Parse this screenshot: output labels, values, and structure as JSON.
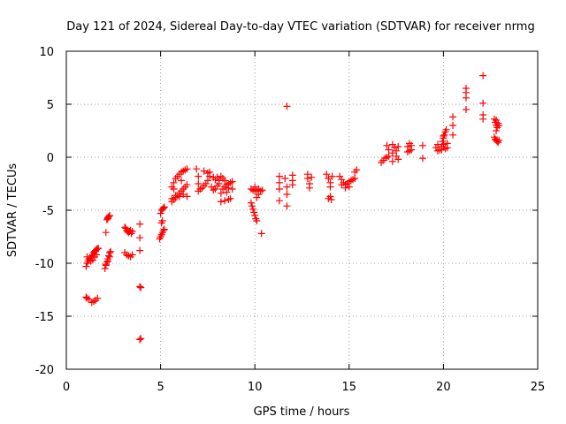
{
  "chart_data": {
    "type": "scatter",
    "title": "Day 121 of 2024, Sidereal Day-to-day VTEC variation (SDTVAR) for receiver nrmg",
    "xlabel": "GPS time / hours",
    "ylabel": "SDTVAR / TECUs",
    "xlim": [
      0,
      25
    ],
    "ylim": [
      -20,
      10
    ],
    "xticks": [
      0,
      5,
      10,
      15,
      20,
      25
    ],
    "yticks": [
      -20,
      -15,
      -10,
      -5,
      0,
      5,
      10
    ],
    "xtick_labels": [
      "0",
      "5",
      "10",
      "15",
      "20",
      "25"
    ],
    "ytick_labels": [
      "-20",
      "-15",
      "-10",
      "-5",
      "0",
      "5",
      "10"
    ],
    "grid": true,
    "marker": "+",
    "series": [
      {
        "name": "SDTVAR",
        "color": "#ff0000",
        "points": [
          [
            1.05,
            -13.2
          ],
          [
            1.1,
            -13.3
          ],
          [
            1.2,
            -13.4
          ],
          [
            1.35,
            -13.7
          ],
          [
            1.45,
            -13.6
          ],
          [
            1.55,
            -13.5
          ],
          [
            1.65,
            -13.3
          ],
          [
            1.05,
            -10.3
          ],
          [
            1.1,
            -10.0
          ],
          [
            1.15,
            -9.8
          ],
          [
            1.2,
            -9.6
          ],
          [
            1.3,
            -9.5
          ],
          [
            1.35,
            -9.3
          ],
          [
            1.4,
            -9.2
          ],
          [
            1.45,
            -9.0
          ],
          [
            1.5,
            -8.9
          ],
          [
            1.55,
            -8.8
          ],
          [
            1.6,
            -8.7
          ],
          [
            1.65,
            -8.6
          ],
          [
            1.7,
            -8.6
          ],
          [
            1.1,
            -9.4
          ],
          [
            1.2,
            -9.6
          ],
          [
            1.3,
            -9.8
          ],
          [
            1.4,
            -9.7
          ],
          [
            1.5,
            -9.4
          ],
          [
            1.6,
            -9.2
          ],
          [
            2.05,
            -10.5
          ],
          [
            2.1,
            -10.2
          ],
          [
            2.15,
            -9.9
          ],
          [
            2.2,
            -9.6
          ],
          [
            2.25,
            -9.3
          ],
          [
            2.3,
            -9.0
          ],
          [
            2.35,
            -8.9
          ],
          [
            2.1,
            -10.1
          ],
          [
            2.2,
            -9.8
          ],
          [
            2.3,
            -9.4
          ],
          [
            2.1,
            -7.1
          ],
          [
            2.15,
            -5.9
          ],
          [
            2.2,
            -5.7
          ],
          [
            2.25,
            -5.6
          ],
          [
            2.3,
            -5.5
          ],
          [
            2.2,
            -5.8
          ],
          [
            3.1,
            -9.0
          ],
          [
            3.2,
            -9.2
          ],
          [
            3.3,
            -9.3
          ],
          [
            3.4,
            -9.4
          ],
          [
            3.5,
            -9.2
          ],
          [
            3.1,
            -6.6
          ],
          [
            3.15,
            -6.7
          ],
          [
            3.2,
            -6.9
          ],
          [
            3.25,
            -7.0
          ],
          [
            3.3,
            -7.1
          ],
          [
            3.35,
            -7.0
          ],
          [
            3.4,
            -6.9
          ],
          [
            3.45,
            -7.2
          ],
          [
            3.5,
            -7.0
          ],
          [
            3.9,
            -6.3
          ],
          [
            3.9,
            -7.6
          ],
          [
            3.9,
            -8.8
          ],
          [
            3.9,
            -12.2
          ],
          [
            3.95,
            -12.3
          ],
          [
            3.9,
            -17.2
          ],
          [
            3.95,
            -17.1
          ],
          [
            4.95,
            -7.7
          ],
          [
            5.0,
            -7.5
          ],
          [
            5.05,
            -7.3
          ],
          [
            5.1,
            -7.1
          ],
          [
            5.15,
            -6.9
          ],
          [
            5.2,
            -6.8
          ],
          [
            5.05,
            -6.2
          ],
          [
            5.1,
            -6.0
          ],
          [
            5.0,
            -5.3
          ],
          [
            5.05,
            -5.0
          ],
          [
            5.1,
            -4.9
          ],
          [
            5.15,
            -4.8
          ],
          [
            5.2,
            -4.7
          ],
          [
            5.6,
            -4.2
          ],
          [
            5.7,
            -4.0
          ],
          [
            5.8,
            -3.8
          ],
          [
            5.9,
            -3.6
          ],
          [
            6.0,
            -3.4
          ],
          [
            6.1,
            -3.2
          ],
          [
            6.2,
            -3.0
          ],
          [
            6.3,
            -2.8
          ],
          [
            6.4,
            -2.6
          ],
          [
            5.6,
            -2.8
          ],
          [
            5.7,
            -2.4
          ],
          [
            5.8,
            -2.0
          ],
          [
            5.9,
            -1.8
          ],
          [
            6.0,
            -1.6
          ],
          [
            6.1,
            -1.4
          ],
          [
            6.2,
            -1.3
          ],
          [
            6.3,
            -1.2
          ],
          [
            6.4,
            -1.1
          ],
          [
            5.6,
            -3.9
          ],
          [
            5.8,
            -3.6
          ],
          [
            6.0,
            -3.7
          ],
          [
            6.2,
            -3.5
          ],
          [
            6.4,
            -3.7
          ],
          [
            5.7,
            -3.0
          ],
          [
            6.1,
            -2.2
          ],
          [
            6.9,
            -1.1
          ],
          [
            7.0,
            -1.8
          ],
          [
            7.0,
            -2.5
          ],
          [
            7.0,
            -3.2
          ],
          [
            7.1,
            -3.0
          ],
          [
            7.2,
            -2.9
          ],
          [
            7.3,
            -2.7
          ],
          [
            7.4,
            -2.5
          ],
          [
            7.3,
            -1.3
          ],
          [
            7.5,
            -1.5
          ],
          [
            7.5,
            -2.2
          ],
          [
            7.6,
            -1.8
          ],
          [
            7.7,
            -2.8
          ],
          [
            7.8,
            -3.1
          ],
          [
            7.9,
            -3.0
          ],
          [
            8.0,
            -2.7
          ],
          [
            8.1,
            -2.5
          ],
          [
            7.6,
            -1.4
          ],
          [
            7.8,
            -1.9
          ],
          [
            7.9,
            -2.1
          ],
          [
            8.0,
            -1.9
          ],
          [
            8.1,
            -2.2
          ],
          [
            8.2,
            -1.8
          ],
          [
            8.3,
            -2.0
          ],
          [
            8.2,
            -3.4
          ],
          [
            8.3,
            -3.0
          ],
          [
            8.4,
            -2.8
          ],
          [
            8.5,
            -2.6
          ],
          [
            8.6,
            -2.5
          ],
          [
            8.7,
            -2.4
          ],
          [
            8.8,
            -2.3
          ],
          [
            8.2,
            -4.2
          ],
          [
            8.4,
            -4.1
          ],
          [
            8.6,
            -4.0
          ],
          [
            8.7,
            -3.9
          ],
          [
            8.5,
            -3.3
          ],
          [
            8.8,
            -3.0
          ],
          [
            8.4,
            -2.2
          ],
          [
            8.6,
            -2.9
          ],
          [
            9.8,
            -3.0
          ],
          [
            9.9,
            -3.1
          ],
          [
            10.0,
            -3.2
          ],
          [
            10.1,
            -3.1
          ],
          [
            10.2,
            -3.0
          ],
          [
            10.3,
            -3.2
          ],
          [
            10.4,
            -3.1
          ],
          [
            9.8,
            -4.3
          ],
          [
            9.85,
            -4.6
          ],
          [
            9.9,
            -4.9
          ],
          [
            9.95,
            -5.2
          ],
          [
            10.0,
            -5.5
          ],
          [
            10.05,
            -5.8
          ],
          [
            10.1,
            -6.0
          ],
          [
            10.1,
            -3.8
          ],
          [
            10.2,
            -3.5
          ],
          [
            10.0,
            -2.8
          ],
          [
            10.35,
            -7.2
          ],
          [
            11.3,
            -1.8
          ],
          [
            11.3,
            -2.4
          ],
          [
            11.3,
            -3.0
          ],
          [
            11.3,
            -4.1
          ],
          [
            11.6,
            -2.0
          ],
          [
            11.7,
            -2.8
          ],
          [
            11.7,
            -3.5
          ],
          [
            11.7,
            -4.6
          ],
          [
            11.7,
            4.8
          ],
          [
            12.0,
            -1.7
          ],
          [
            12.0,
            -2.2
          ],
          [
            12.0,
            -2.6
          ],
          [
            12.8,
            -1.6
          ],
          [
            12.8,
            -2.0
          ],
          [
            12.9,
            -2.5
          ],
          [
            12.9,
            -2.9
          ],
          [
            13.0,
            -1.9
          ],
          [
            13.8,
            -1.6
          ],
          [
            13.9,
            -2.0
          ],
          [
            14.0,
            -2.4
          ],
          [
            14.0,
            -2.8
          ],
          [
            14.1,
            -1.8
          ],
          [
            13.9,
            -3.9
          ],
          [
            14.0,
            -3.7
          ],
          [
            14.05,
            -4.0
          ],
          [
            14.5,
            -1.8
          ],
          [
            14.6,
            -2.1
          ],
          [
            14.7,
            -2.4
          ],
          [
            14.8,
            -2.6
          ],
          [
            14.9,
            -2.5
          ],
          [
            15.0,
            -2.3
          ],
          [
            15.1,
            -2.2
          ],
          [
            15.2,
            -2.1
          ],
          [
            15.3,
            -2.0
          ],
          [
            14.6,
            -2.6
          ],
          [
            14.8,
            -2.9
          ],
          [
            15.0,
            -2.8
          ],
          [
            15.3,
            -1.4
          ],
          [
            15.4,
            -1.2
          ],
          [
            16.7,
            -0.5
          ],
          [
            16.8,
            -0.3
          ],
          [
            16.9,
            -0.1
          ],
          [
            17.0,
            0.0
          ],
          [
            17.1,
            0.1
          ],
          [
            17.0,
            1.1
          ],
          [
            17.1,
            0.7
          ],
          [
            17.3,
            1.2
          ],
          [
            17.3,
            0.4
          ],
          [
            17.3,
            -0.4
          ],
          [
            17.4,
            0.9
          ],
          [
            17.5,
            0.6
          ],
          [
            17.5,
            0.1
          ],
          [
            17.6,
            -0.2
          ],
          [
            17.6,
            1.0
          ],
          [
            18.1,
            0.5
          ],
          [
            18.1,
            1.0
          ],
          [
            18.2,
            1.3
          ],
          [
            18.2,
            0.6
          ],
          [
            18.3,
            0.7
          ],
          [
            18.3,
            1.1
          ],
          [
            18.9,
            1.1
          ],
          [
            18.9,
            -0.1
          ],
          [
            19.6,
            0.9
          ],
          [
            19.7,
            1.2
          ],
          [
            19.8,
            0.7
          ],
          [
            19.9,
            1.0
          ],
          [
            19.95,
            1.5
          ],
          [
            20.0,
            1.8
          ],
          [
            20.05,
            2.1
          ],
          [
            20.1,
            2.4
          ],
          [
            20.15,
            2.6
          ],
          [
            19.7,
            0.6
          ],
          [
            19.9,
            0.7
          ],
          [
            20.1,
            0.8
          ],
          [
            20.2,
            0.9
          ],
          [
            20.0,
            1.2
          ],
          [
            20.2,
            1.3
          ],
          [
            20.5,
            3.8
          ],
          [
            20.5,
            3.0
          ],
          [
            20.5,
            2.1
          ],
          [
            21.2,
            6.5
          ],
          [
            21.2,
            6.1
          ],
          [
            21.2,
            5.6
          ],
          [
            21.2,
            4.5
          ],
          [
            22.1,
            7.7
          ],
          [
            22.1,
            5.1
          ],
          [
            22.1,
            4.0
          ],
          [
            22.1,
            3.6
          ],
          [
            22.7,
            3.6
          ],
          [
            22.75,
            3.3
          ],
          [
            22.8,
            3.0
          ],
          [
            22.85,
            2.8
          ],
          [
            22.9,
            3.2
          ],
          [
            22.95,
            3.0
          ],
          [
            22.8,
            3.5
          ],
          [
            22.7,
            1.9
          ],
          [
            22.75,
            1.7
          ],
          [
            22.8,
            1.6
          ],
          [
            22.85,
            1.5
          ],
          [
            22.9,
            1.4
          ],
          [
            22.95,
            1.6
          ],
          [
            20.0,
            2.0
          ],
          [
            22.8,
            2.5
          ]
        ]
      }
    ]
  }
}
